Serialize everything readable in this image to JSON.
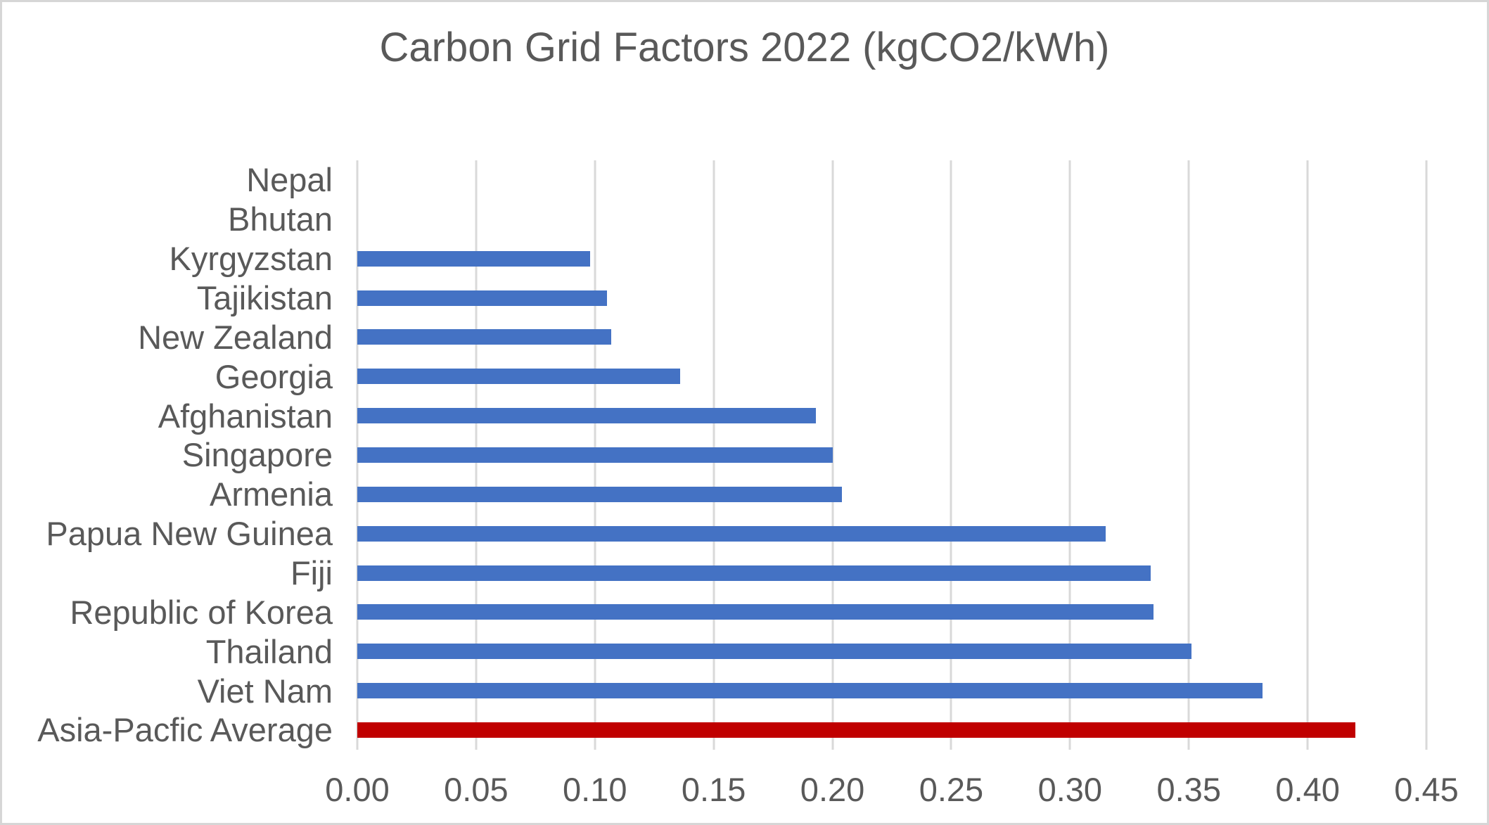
{
  "chart_data": {
    "type": "bar",
    "orientation": "horizontal",
    "title": "Carbon Grid Factors 2022 (kgCO2/kWh)",
    "categories": [
      "Nepal",
      "Bhutan",
      "Kyrgyzstan",
      "Tajikistan",
      "New Zealand",
      "Georgia",
      "Afghanistan",
      "Singapore",
      "Armenia",
      "Papua New Guinea",
      "Fiji",
      "Republic of Korea",
      "Thailand",
      "Viet Nam",
      "Asia-Pacfic Average"
    ],
    "values": [
      0,
      0,
      0.098,
      0.105,
      0.107,
      0.136,
      0.193,
      0.2,
      0.204,
      0.315,
      0.334,
      0.335,
      0.351,
      0.381,
      0.42
    ],
    "point_colors": [
      "#4472C4",
      "#4472C4",
      "#4472C4",
      "#4472C4",
      "#4472C4",
      "#4472C4",
      "#4472C4",
      "#4472C4",
      "#4472C4",
      "#4472C4",
      "#4472C4",
      "#4472C4",
      "#4472C4",
      "#4472C4",
      "#C00000"
    ],
    "highlighted_category": "Asia-Pacfic Average",
    "xlabel": "",
    "ylabel": "",
    "xlim": [
      0,
      0.45
    ],
    "x_tick_values": [
      0,
      0.05,
      0.1,
      0.15,
      0.2,
      0.25,
      0.3,
      0.35,
      0.4,
      0.45
    ],
    "x_tick_labels": [
      "0.00",
      "0.05",
      "0.10",
      "0.15",
      "0.20",
      "0.25",
      "0.30",
      "0.35",
      "0.40",
      "0.45"
    ],
    "grid": true,
    "legend": false,
    "colors": {
      "bar_default": "#4472C4",
      "bar_highlight": "#C00000",
      "gridline": "#D9D9D9",
      "text": "#595959",
      "chart_border": "#D6D6D6",
      "background": "#FFFFFF"
    }
  }
}
